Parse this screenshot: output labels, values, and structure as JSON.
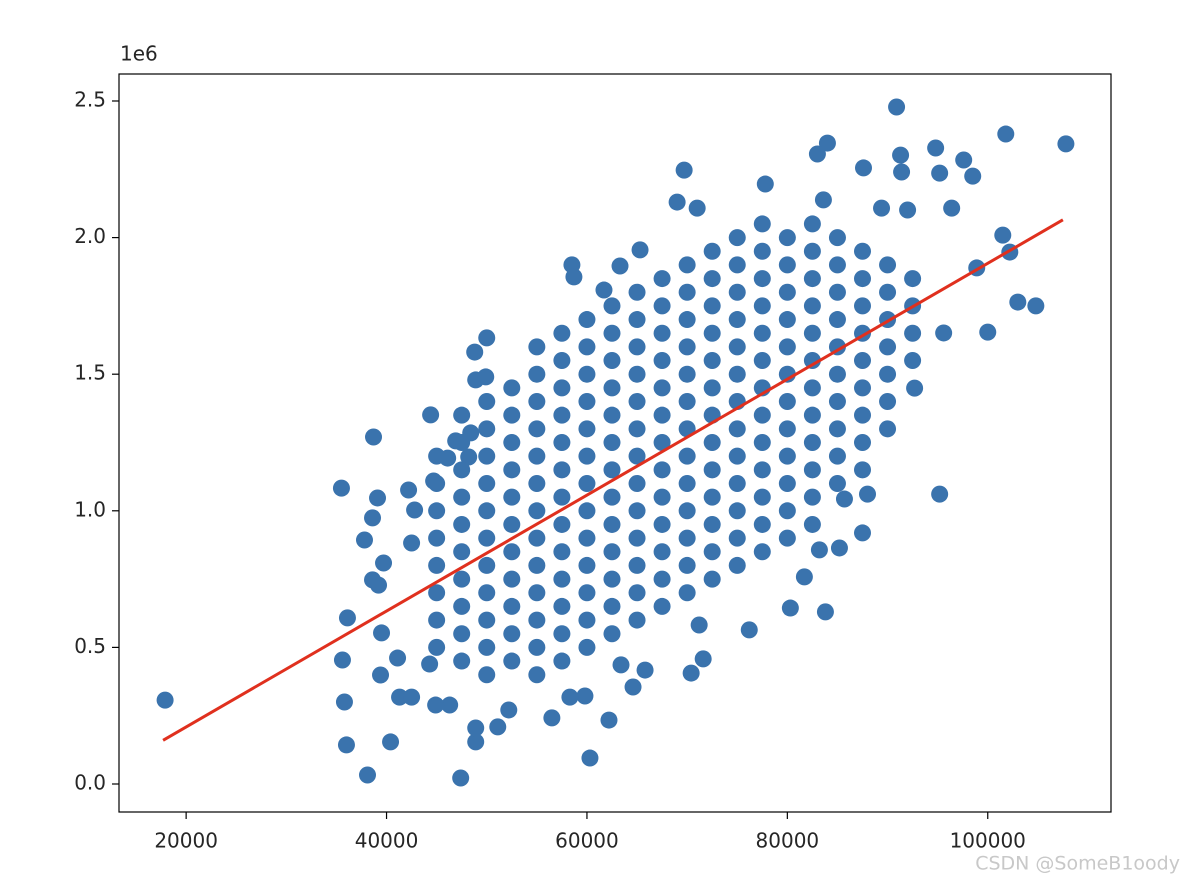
{
  "chart_data": {
    "type": "scatter",
    "y_offset_label": "1e6",
    "watermark": "CSDN @SomeB1oody",
    "xlim": [
      13300,
      112300
    ],
    "ylim": [
      -102500,
      2598800
    ],
    "xticks": [
      20000,
      40000,
      60000,
      80000,
      100000
    ],
    "yticks": [
      {
        "value": 0,
        "label": "0.0"
      },
      {
        "value": 500000,
        "label": "0.5"
      },
      {
        "value": 1000000,
        "label": "1.0"
      },
      {
        "value": 1500000,
        "label": "1.5"
      },
      {
        "value": 2000000,
        "label": "2.0"
      },
      {
        "value": 2500000,
        "label": "2.5"
      }
    ],
    "points": {
      "color": "#3a73ad",
      "x": [
        17900,
        35500,
        38700,
        36100,
        35600,
        35800,
        36000,
        38100,
        40400,
        47400,
        60300,
        48900,
        48900,
        51100,
        56500,
        62200,
        39100,
        38600,
        37800,
        39400,
        41300,
        44400,
        48800,
        50000,
        48900,
        58500,
        58700,
        61700,
        63300,
        65300,
        69700,
        69000,
        71000,
        77800,
        90900,
        84000,
        83000,
        87600,
        91300,
        94800,
        101800,
        107800,
        97600,
        98500,
        95200,
        91400,
        101500,
        102200,
        103000,
        104800,
        100000,
        98900,
        95200,
        92700,
        95600,
        96400,
        92000,
        89400,
        83600,
        83800,
        83200,
        85200,
        87500,
        85700,
        88000,
        80300,
        81700,
        76200,
        70400,
        71600,
        71200,
        64600,
        65800,
        63400,
        59800,
        58300,
        52200,
        46300,
        44900,
        42500,
        44300,
        41100,
        39500,
        39200,
        38600,
        39700,
        42200,
        42800,
        42500,
        44700,
        46100,
        46900,
        48200,
        48400,
        49900,
        45000,
        45000,
        45000,
        45000,
        45000,
        45000,
        45000,
        45000,
        47500,
        47500,
        47500,
        47500,
        47500,
        47500,
        47500,
        47500,
        47500,
        47500,
        50000,
        50000,
        50000,
        50000,
        50000,
        50000,
        50000,
        50000,
        50000,
        50000,
        50000,
        52500,
        52500,
        52500,
        52500,
        52500,
        52500,
        52500,
        52500,
        52500,
        52500,
        52500,
        55000,
        55000,
        55000,
        55000,
        55000,
        55000,
        55000,
        55000,
        55000,
        55000,
        55000,
        55000,
        55000,
        57500,
        57500,
        57500,
        57500,
        57500,
        57500,
        57500,
        57500,
        57500,
        57500,
        57500,
        57500,
        57500,
        60000,
        60000,
        60000,
        60000,
        60000,
        60000,
        60000,
        60000,
        60000,
        60000,
        60000,
        60000,
        60000,
        62500,
        62500,
        62500,
        62500,
        62500,
        62500,
        62500,
        62500,
        62500,
        62500,
        62500,
        62500,
        62500,
        65000,
        65000,
        65000,
        65000,
        65000,
        65000,
        65000,
        65000,
        65000,
        65000,
        65000,
        65000,
        65000,
        67500,
        67500,
        67500,
        67500,
        67500,
        67500,
        67500,
        67500,
        67500,
        67500,
        67500,
        67500,
        67500,
        70000,
        70000,
        70000,
        70000,
        70000,
        70000,
        70000,
        70000,
        70000,
        70000,
        70000,
        70000,
        70000,
        72500,
        72500,
        72500,
        72500,
        72500,
        72500,
        72500,
        72500,
        72500,
        72500,
        72500,
        72500,
        72500,
        75000,
        75000,
        75000,
        75000,
        75000,
        75000,
        75000,
        75000,
        75000,
        75000,
        75000,
        75000,
        75000,
        77500,
        77500,
        77500,
        77500,
        77500,
        77500,
        77500,
        77500,
        77500,
        77500,
        77500,
        77500,
        77500,
        80000,
        80000,
        80000,
        80000,
        80000,
        80000,
        80000,
        80000,
        80000,
        80000,
        80000,
        80000,
        82500,
        82500,
        82500,
        82500,
        82500,
        82500,
        82500,
        82500,
        82500,
        82500,
        82500,
        82500,
        85000,
        85000,
        85000,
        85000,
        85000,
        85000,
        85000,
        85000,
        85000,
        85000,
        87500,
        87500,
        87500,
        87500,
        87500,
        87500,
        87500,
        87500,
        87500,
        90000,
        90000,
        90000,
        90000,
        90000,
        90000,
        90000,
        92500,
        92500,
        92500,
        92500
      ],
      "y": [
        307000,
        1083000,
        1270000,
        608000,
        454000,
        300000,
        143000,
        33000,
        154000,
        22000,
        95000,
        154000,
        205000,
        209000,
        242000,
        234000,
        1047000,
        974000,
        893000,
        399000,
        318000,
        1351000,
        1581000,
        1633000,
        1479000,
        1900000,
        1856000,
        1808000,
        1896000,
        1955000,
        2247000,
        2130000,
        2108000,
        2196000,
        2478000,
        2346000,
        2306000,
        2255000,
        2302000,
        2328000,
        2379000,
        2343000,
        2284000,
        2225000,
        2236000,
        2240000,
        2009000,
        1947000,
        1764000,
        1750000,
        1654000,
        1889000,
        1061000,
        1449000,
        1651000,
        2108000,
        2101000,
        2108000,
        2138000,
        630000,
        857000,
        864000,
        919000,
        1043000,
        1061000,
        644000,
        758000,
        564000,
        406000,
        458000,
        582000,
        355000,
        417000,
        436000,
        322000,
        318000,
        271000,
        289000,
        289000,
        318000,
        439000,
        461000,
        553000,
        728000,
        747000,
        809000,
        1076000,
        1003000,
        882000,
        1109000,
        1193000,
        1256000,
        1197000,
        1285000,
        1490000,
        500000,
        600000,
        700000,
        800000,
        900000,
        1000000,
        1100000,
        1200000,
        450000,
        550000,
        650000,
        750000,
        850000,
        950000,
        1050000,
        1150000,
        1250000,
        1350000,
        400000,
        500000,
        600000,
        700000,
        800000,
        900000,
        1000000,
        1100000,
        1200000,
        1300000,
        1400000,
        450000,
        550000,
        650000,
        750000,
        850000,
        950000,
        1050000,
        1150000,
        1250000,
        1350000,
        1450000,
        400000,
        500000,
        600000,
        700000,
        800000,
        900000,
        1000000,
        1100000,
        1200000,
        1300000,
        1400000,
        1500000,
        1600000,
        450000,
        550000,
        650000,
        750000,
        850000,
        950000,
        1050000,
        1150000,
        1250000,
        1350000,
        1450000,
        1550000,
        1650000,
        500000,
        600000,
        700000,
        800000,
        900000,
        1000000,
        1100000,
        1200000,
        1300000,
        1400000,
        1500000,
        1600000,
        1700000,
        550000,
        650000,
        750000,
        850000,
        950000,
        1050000,
        1150000,
        1250000,
        1350000,
        1450000,
        1550000,
        1650000,
        1750000,
        600000,
        700000,
        800000,
        900000,
        1000000,
        1100000,
        1200000,
        1300000,
        1400000,
        1500000,
        1600000,
        1700000,
        1800000,
        650000,
        750000,
        850000,
        950000,
        1050000,
        1150000,
        1250000,
        1350000,
        1450000,
        1550000,
        1650000,
        1750000,
        1850000,
        700000,
        800000,
        900000,
        1000000,
        1100000,
        1200000,
        1300000,
        1400000,
        1500000,
        1600000,
        1700000,
        1800000,
        1900000,
        750000,
        850000,
        950000,
        1050000,
        1150000,
        1250000,
        1350000,
        1450000,
        1550000,
        1650000,
        1750000,
        1850000,
        1950000,
        800000,
        900000,
        1000000,
        1100000,
        1200000,
        1300000,
        1400000,
        1500000,
        1600000,
        1700000,
        1800000,
        1900000,
        2000000,
        850000,
        950000,
        1050000,
        1150000,
        1250000,
        1350000,
        1450000,
        1550000,
        1650000,
        1750000,
        1850000,
        1950000,
        2050000,
        900000,
        1000000,
        1100000,
        1200000,
        1300000,
        1400000,
        1500000,
        1600000,
        1700000,
        1800000,
        1900000,
        2000000,
        950000,
        1050000,
        1150000,
        1250000,
        1350000,
        1450000,
        1550000,
        1650000,
        1750000,
        1850000,
        1950000,
        2050000,
        1100000,
        1200000,
        1300000,
        1400000,
        1500000,
        1600000,
        1700000,
        1800000,
        1900000,
        2000000,
        1150000,
        1250000,
        1350000,
        1450000,
        1550000,
        1650000,
        1750000,
        1850000,
        1950000,
        1300000,
        1400000,
        1500000,
        1600000,
        1700000,
        1800000,
        1900000,
        1550000,
        1650000,
        1750000,
        1850000
      ]
    },
    "regression_line": {
      "color": "#e0301e",
      "x": [
        17700,
        107500
      ],
      "y": [
        160000,
        2065000
      ]
    }
  }
}
